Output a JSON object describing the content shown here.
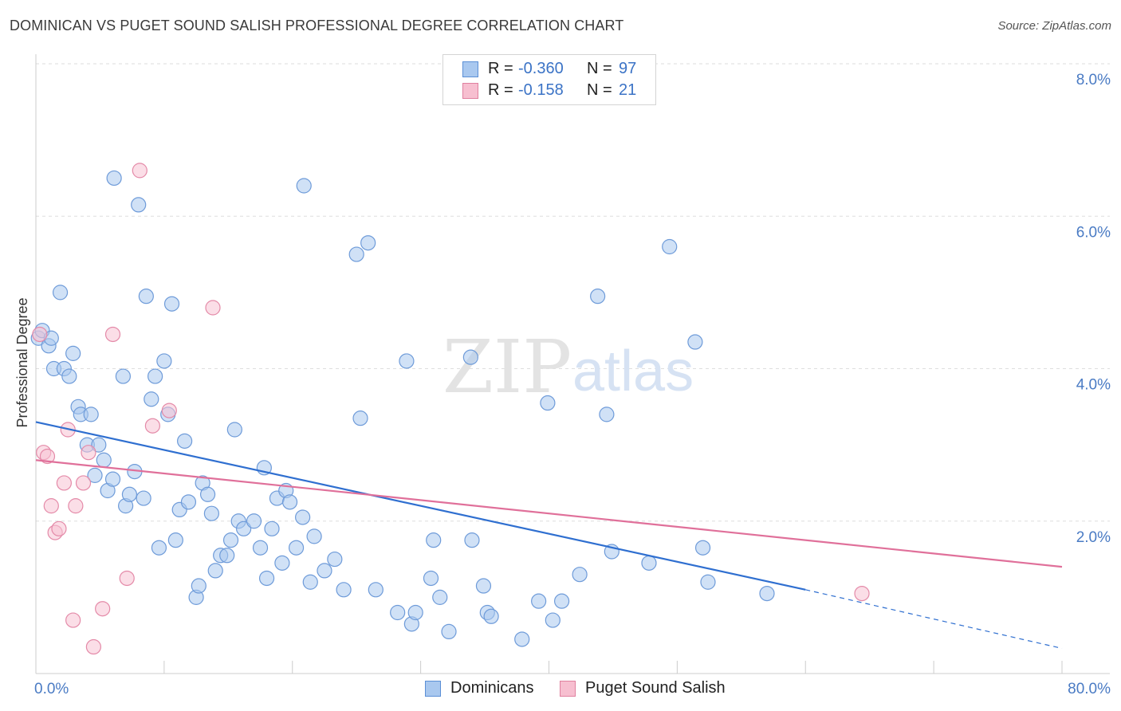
{
  "header": {
    "title": "DOMINICAN VS PUGET SOUND SALISH PROFESSIONAL DEGREE CORRELATION CHART",
    "source": "Source: ZipAtlas.com"
  },
  "watermark": {
    "zip": "ZIP",
    "atlas": "atlas"
  },
  "legend": {
    "rows": [
      {
        "r_label": "R =",
        "r_value": "-0.360",
        "n_label": "N =",
        "n_value": "97",
        "color": "#a9c8ef",
        "border": "#5b8fd6"
      },
      {
        "r_label": "R =",
        "r_value": "-0.158",
        "n_label": "N =",
        "n_value": "21",
        "color": "#f7bfd0",
        "border": "#e0809f"
      }
    ]
  },
  "bottom_legend": [
    {
      "label": "Dominicans",
      "color": "#a9c8ef",
      "border": "#5b8fd6"
    },
    {
      "label": "Puget Sound Salish",
      "color": "#f7bfd0",
      "border": "#e0809f"
    }
  ],
  "colors": {
    "blue_fill": "#a9c8ef",
    "blue_stroke": "#6e9bd9",
    "blue_line": "#2f6fd0",
    "pink_fill": "#f7c3d3",
    "pink_stroke": "#e48aa8",
    "pink_line": "#e0709a",
    "grid": "#dedede",
    "axis": "#cccccc"
  },
  "chart_data": {
    "type": "scatter",
    "title": "DOMINICAN VS PUGET SOUND SALISH PROFESSIONAL DEGREE CORRELATION CHART",
    "xlabel": "",
    "ylabel": "Professional Degree",
    "xlim": [
      0,
      80
    ],
    "ylim": [
      0,
      8.0
    ],
    "x_tick_labels": [
      "0.0%",
      "80.0%"
    ],
    "y_ticks": [
      2.0,
      4.0,
      6.0,
      8.0
    ],
    "y_tick_labels": [
      "2.0%",
      "4.0%",
      "6.0%",
      "8.0%"
    ],
    "grid": true,
    "series": [
      {
        "name": "Dominicans",
        "r": -0.36,
        "n": 97,
        "trend": {
          "x0": 0,
          "y0": 3.3,
          "x1": 60,
          "y1": 1.1,
          "dash_to_x": 80,
          "dash_to_y": 0.33
        },
        "points": [
          [
            0.2,
            4.4
          ],
          [
            0.5,
            4.5
          ],
          [
            1.0,
            4.3
          ],
          [
            1.2,
            4.4
          ],
          [
            1.4,
            4.0
          ],
          [
            1.9,
            5.0
          ],
          [
            2.2,
            4.0
          ],
          [
            2.6,
            3.9
          ],
          [
            2.9,
            4.2
          ],
          [
            3.3,
            3.5
          ],
          [
            3.5,
            3.4
          ],
          [
            4.0,
            3.0
          ],
          [
            4.3,
            3.4
          ],
          [
            4.6,
            2.6
          ],
          [
            4.9,
            3.0
          ],
          [
            5.3,
            2.8
          ],
          [
            5.6,
            2.4
          ],
          [
            6.0,
            2.55
          ],
          [
            6.1,
            6.5
          ],
          [
            6.8,
            3.9
          ],
          [
            7.0,
            2.2
          ],
          [
            7.3,
            2.35
          ],
          [
            7.7,
            2.65
          ],
          [
            8.0,
            6.15
          ],
          [
            8.4,
            2.3
          ],
          [
            8.6,
            4.95
          ],
          [
            9.0,
            3.6
          ],
          [
            9.3,
            3.9
          ],
          [
            9.6,
            1.65
          ],
          [
            10.0,
            4.1
          ],
          [
            10.3,
            3.4
          ],
          [
            10.6,
            4.85
          ],
          [
            10.9,
            1.75
          ],
          [
            11.2,
            2.15
          ],
          [
            11.6,
            3.05
          ],
          [
            11.9,
            2.25
          ],
          [
            12.5,
            1.0
          ],
          [
            12.7,
            1.15
          ],
          [
            13.0,
            2.5
          ],
          [
            13.4,
            2.35
          ],
          [
            13.7,
            2.1
          ],
          [
            14.0,
            1.35
          ],
          [
            14.4,
            1.55
          ],
          [
            14.9,
            1.55
          ],
          [
            15.2,
            1.75
          ],
          [
            15.5,
            3.2
          ],
          [
            15.8,
            2.0
          ],
          [
            16.2,
            1.9
          ],
          [
            17.0,
            2.0
          ],
          [
            17.5,
            1.65
          ],
          [
            17.8,
            2.7
          ],
          [
            18.0,
            1.25
          ],
          [
            18.4,
            1.9
          ],
          [
            18.8,
            2.3
          ],
          [
            19.2,
            1.45
          ],
          [
            19.5,
            2.4
          ],
          [
            19.8,
            2.25
          ],
          [
            20.3,
            1.65
          ],
          [
            20.8,
            2.05
          ],
          [
            20.9,
            6.4
          ],
          [
            21.4,
            1.2
          ],
          [
            21.7,
            1.8
          ],
          [
            22.5,
            1.35
          ],
          [
            23.3,
            1.5
          ],
          [
            24.0,
            1.1
          ],
          [
            25.0,
            5.5
          ],
          [
            25.3,
            3.35
          ],
          [
            25.9,
            5.65
          ],
          [
            26.5,
            1.1
          ],
          [
            28.2,
            0.8
          ],
          [
            28.9,
            4.1
          ],
          [
            29.3,
            0.65
          ],
          [
            29.6,
            0.8
          ],
          [
            30.8,
            1.25
          ],
          [
            31.0,
            1.75
          ],
          [
            31.5,
            1.0
          ],
          [
            32.2,
            0.55
          ],
          [
            33.9,
            4.15
          ],
          [
            34.0,
            1.75
          ],
          [
            34.9,
            1.15
          ],
          [
            35.2,
            0.8
          ],
          [
            35.5,
            0.75
          ],
          [
            37.9,
            0.45
          ],
          [
            39.2,
            0.95
          ],
          [
            39.9,
            3.55
          ],
          [
            40.3,
            0.7
          ],
          [
            41.0,
            0.95
          ],
          [
            42.4,
            1.3
          ],
          [
            43.8,
            4.95
          ],
          [
            44.5,
            3.4
          ],
          [
            44.9,
            1.6
          ],
          [
            47.8,
            1.45
          ],
          [
            49.4,
            5.6
          ],
          [
            51.4,
            4.35
          ],
          [
            52.0,
            1.65
          ],
          [
            52.4,
            1.2
          ],
          [
            57.0,
            1.05
          ]
        ]
      },
      {
        "name": "Puget Sound Salish",
        "r": -0.158,
        "n": 21,
        "trend": {
          "x0": 0,
          "y0": 2.8,
          "x1": 80,
          "y1": 1.4
        },
        "points": [
          [
            0.3,
            4.45
          ],
          [
            0.6,
            2.9
          ],
          [
            0.9,
            2.85
          ],
          [
            1.2,
            2.2
          ],
          [
            1.5,
            1.85
          ],
          [
            1.8,
            1.9
          ],
          [
            2.2,
            2.5
          ],
          [
            2.5,
            3.2
          ],
          [
            2.9,
            0.7
          ],
          [
            3.1,
            2.2
          ],
          [
            3.7,
            2.5
          ],
          [
            4.1,
            2.9
          ],
          [
            4.5,
            0.35
          ],
          [
            5.2,
            0.85
          ],
          [
            6.0,
            4.45
          ],
          [
            7.1,
            1.25
          ],
          [
            8.1,
            6.6
          ],
          [
            9.1,
            3.25
          ],
          [
            10.4,
            3.45
          ],
          [
            13.8,
            4.8
          ],
          [
            64.4,
            1.05
          ]
        ]
      }
    ]
  }
}
